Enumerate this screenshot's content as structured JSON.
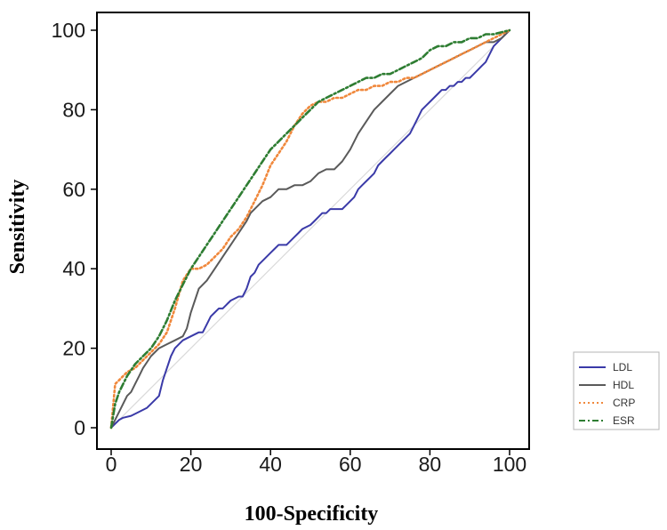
{
  "chart_data": {
    "type": "line",
    "title": "",
    "xlabel": "100-Specificity",
    "ylabel": "Sensitivity",
    "xlim": [
      0,
      100
    ],
    "ylim": [
      0,
      100
    ],
    "x_ticks": [
      0,
      20,
      40,
      60,
      80,
      100
    ],
    "y_ticks": [
      0,
      20,
      40,
      60,
      80,
      100
    ],
    "x_tick_labels": [
      "0",
      "20",
      "40",
      "60",
      "80",
      "100"
    ],
    "y_tick_labels": [
      "0",
      "20",
      "40",
      "60",
      "80",
      "100"
    ],
    "grid": false,
    "legend_position": "bottom-right, outside plot",
    "reference_line": {
      "x": [
        0,
        100
      ],
      "y": [
        0,
        100
      ],
      "color": "#d9d9d9"
    },
    "series": [
      {
        "name": "LDL",
        "color": "#3a3aa8",
        "dash": "solid",
        "x": [
          0,
          1,
          2,
          3,
          5,
          7,
          9,
          11,
          12,
          13,
          14,
          15,
          16,
          17,
          18,
          20,
          22,
          23,
          24,
          25,
          26,
          27,
          28,
          30,
          32,
          33,
          34,
          35,
          36,
          37,
          38,
          39,
          40,
          41,
          42,
          44,
          45,
          46,
          47,
          48,
          50,
          51,
          52,
          53,
          54,
          55,
          56,
          57,
          58,
          59,
          60,
          61,
          62,
          63,
          64,
          65,
          66,
          67,
          68,
          69,
          70,
          71,
          72,
          73,
          74,
          75,
          76,
          77,
          78,
          79,
          80,
          81,
          82,
          83,
          84,
          85,
          86,
          87,
          88,
          89,
          90,
          91,
          92,
          93,
          94,
          95,
          96,
          97,
          98,
          99,
          100
        ],
        "y": [
          0,
          1,
          2,
          2.5,
          3,
          4,
          5,
          7,
          8,
          12,
          15,
          18,
          20,
          21,
          22,
          23,
          24,
          24,
          26,
          28,
          29,
          30,
          30,
          32,
          33,
          33,
          35,
          38,
          39,
          41,
          42,
          43,
          44,
          45,
          46,
          46,
          47,
          48,
          49,
          50,
          51,
          52,
          53,
          54,
          54,
          55,
          55,
          55,
          55,
          56,
          57,
          58,
          60,
          61,
          62,
          63,
          64,
          66,
          67,
          68,
          69,
          70,
          71,
          72,
          73,
          74,
          76,
          78,
          80,
          81,
          82,
          83,
          84,
          85,
          85,
          86,
          86,
          87,
          87,
          88,
          88,
          89,
          90,
          91,
          92,
          94,
          96,
          97,
          98,
          99,
          100
        ]
      },
      {
        "name": "HDL",
        "color": "#5a5a5a",
        "dash": "solid",
        "x": [
          0,
          1,
          2,
          3,
          4,
          5,
          6,
          7,
          8,
          10,
          12,
          14,
          16,
          18,
          19,
          20,
          21,
          22,
          24,
          26,
          28,
          30,
          32,
          34,
          35,
          36,
          38,
          40,
          42,
          44,
          46,
          48,
          50,
          52,
          54,
          56,
          58,
          60,
          62,
          64,
          66,
          68,
          70,
          72,
          74,
          76,
          78,
          80,
          82,
          84,
          86,
          88,
          90,
          92,
          94,
          96,
          98,
          100
        ],
        "y": [
          0,
          2,
          4,
          6,
          8,
          9,
          11,
          13,
          15,
          18,
          20,
          21,
          22,
          23,
          25,
          29,
          32,
          35,
          37,
          40,
          43,
          46,
          49,
          52,
          54,
          55,
          57,
          58,
          60,
          60,
          61,
          61,
          62,
          64,
          65,
          65,
          67,
          70,
          74,
          77,
          80,
          82,
          84,
          86,
          87,
          88,
          89,
          90,
          91,
          92,
          93,
          94,
          95,
          96,
          97,
          97,
          98,
          100
        ]
      },
      {
        "name": "CRP",
        "color": "#f0883c",
        "dash": "dotted",
        "x": [
          0,
          1,
          2,
          4,
          6,
          8,
          10,
          12,
          14,
          16,
          18,
          20,
          22,
          24,
          26,
          28,
          30,
          32,
          34,
          36,
          38,
          40,
          42,
          44,
          46,
          48,
          50,
          52,
          54,
          56,
          58,
          60,
          62,
          64,
          66,
          68,
          70,
          72,
          74,
          76,
          78,
          80,
          82,
          84,
          86,
          88,
          90,
          92,
          94,
          96,
          98,
          100
        ],
        "y": [
          0,
          11,
          12,
          14,
          15,
          17,
          19,
          21,
          24,
          30,
          37,
          40,
          40,
          41,
          43,
          45,
          48,
          50,
          53,
          57,
          61,
          66,
          69,
          72,
          76,
          79,
          81,
          82,
          82,
          83,
          83,
          84,
          85,
          85,
          86,
          86,
          87,
          87,
          88,
          88,
          89,
          90,
          91,
          92,
          93,
          94,
          95,
          96,
          97,
          98,
          99,
          100
        ]
      },
      {
        "name": "ESR",
        "color": "#2e7d32",
        "dash": "dashdot",
        "x": [
          0,
          1,
          2,
          4,
          6,
          8,
          10,
          12,
          14,
          16,
          18,
          20,
          22,
          24,
          26,
          28,
          30,
          32,
          34,
          36,
          38,
          40,
          42,
          44,
          46,
          48,
          50,
          52,
          54,
          56,
          58,
          60,
          62,
          64,
          66,
          68,
          70,
          72,
          74,
          76,
          78,
          80,
          82,
          84,
          86,
          88,
          90,
          92,
          94,
          96,
          98,
          100
        ],
        "y": [
          0,
          6,
          9,
          13,
          16,
          18,
          20,
          23,
          27,
          32,
          36,
          40,
          43,
          46,
          49,
          52,
          55,
          58,
          61,
          64,
          67,
          70,
          72,
          74,
          76,
          78,
          80,
          82,
          83,
          84,
          85,
          86,
          87,
          88,
          88,
          89,
          89,
          90,
          91,
          92,
          93,
          95,
          96,
          96,
          97,
          97,
          98,
          98,
          99,
          99,
          99.5,
          100
        ]
      }
    ]
  }
}
